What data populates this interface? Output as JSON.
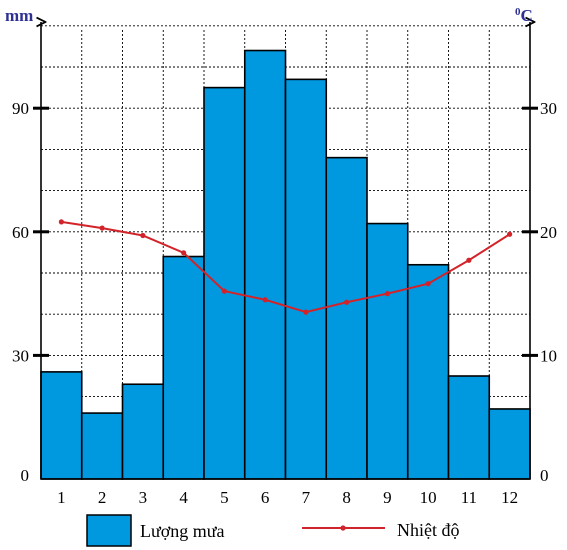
{
  "chart_data": {
    "type": "bar",
    "categories": [
      "1",
      "2",
      "3",
      "4",
      "5",
      "6",
      "7",
      "8",
      "9",
      "10",
      "11",
      "12"
    ],
    "series": [
      {
        "name": "Lượng mưa",
        "type": "bar",
        "axis": "left",
        "color": "#0099e0",
        "values": [
          26,
          16,
          23,
          54,
          95,
          104,
          97,
          78,
          62,
          52,
          25,
          17
        ]
      },
      {
        "name": "Nhiệt độ",
        "type": "line",
        "axis": "right",
        "color": "#d2232a",
        "values": [
          20.8,
          20.3,
          19.7,
          18.3,
          15.2,
          14.5,
          13.5,
          14.3,
          15.0,
          15.8,
          17.7,
          19.8
        ]
      }
    ],
    "left_axis": {
      "unit": "mm",
      "ticks": [
        "0",
        "30",
        "60",
        "90"
      ],
      "range": [
        0,
        110
      ]
    },
    "right_axis": {
      "unit": "0C",
      "ticks": [
        "0",
        "10",
        "20",
        "30"
      ],
      "range": [
        0,
        36.67
      ]
    },
    "grid": true,
    "legend_position": "bottom"
  }
}
